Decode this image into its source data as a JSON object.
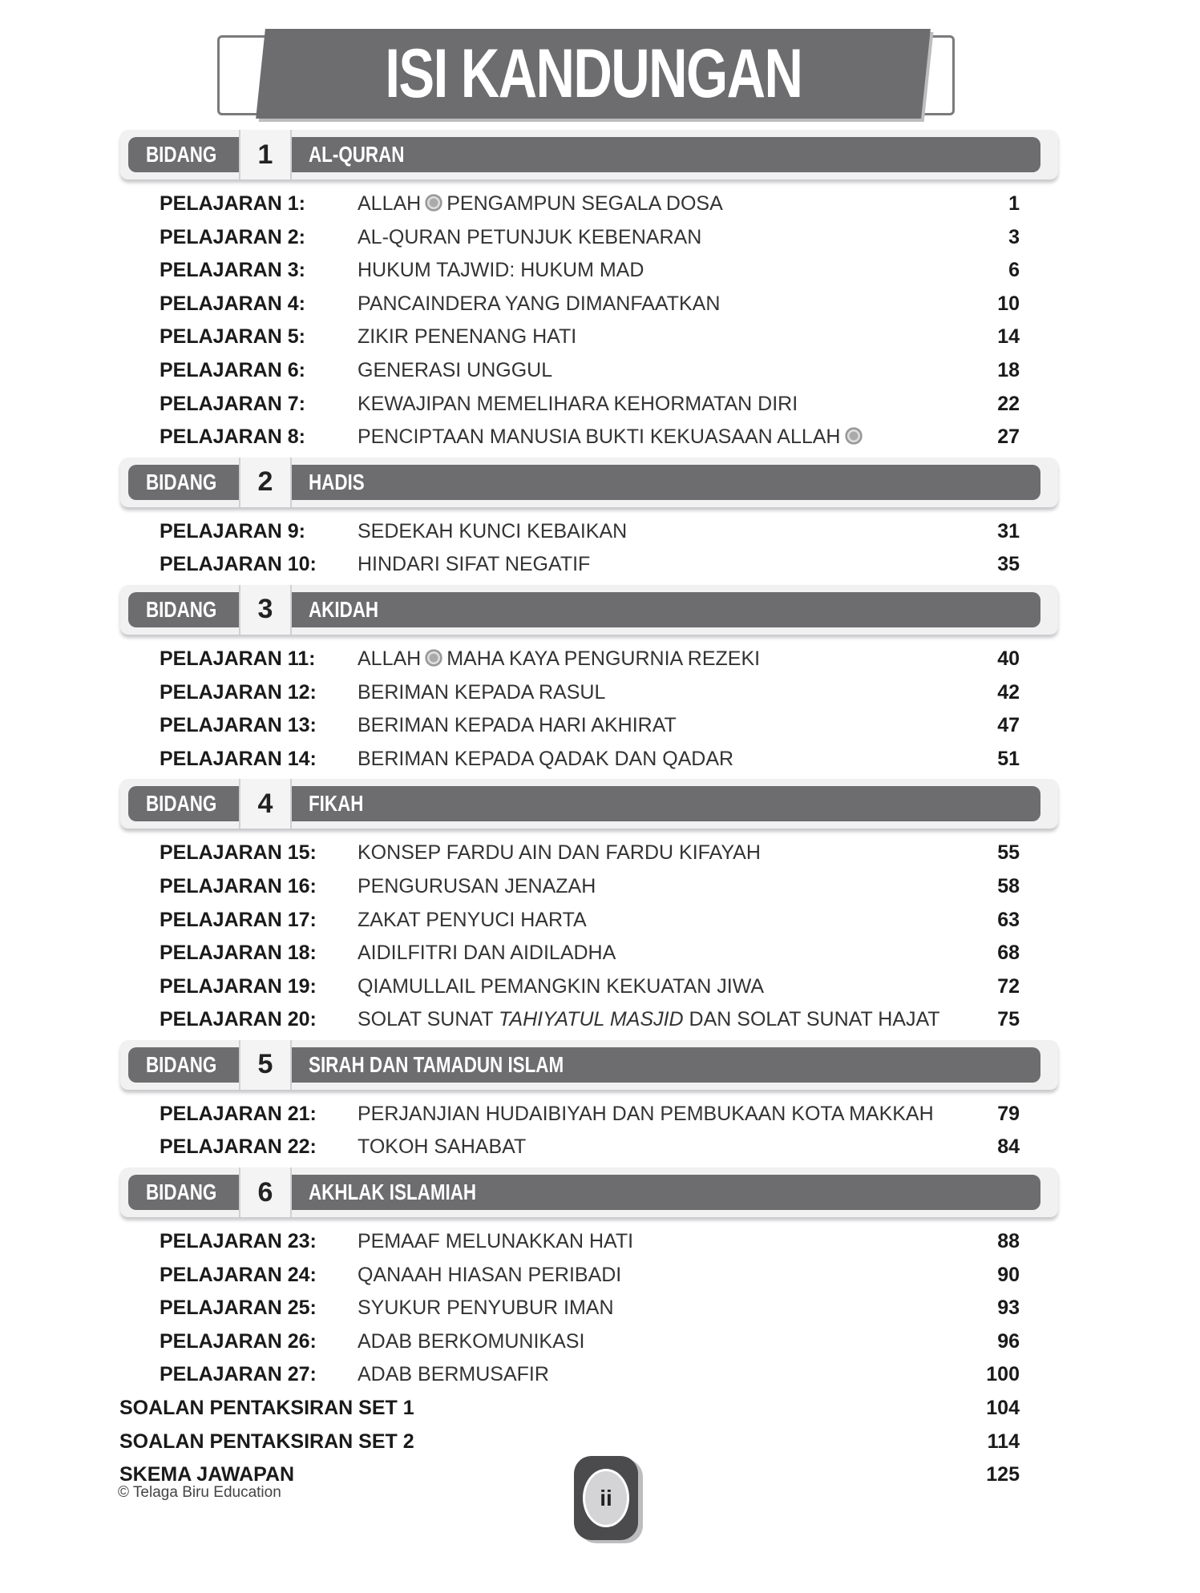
{
  "title": "ISI KANDUNGAN",
  "bidang_label": "BIDANG",
  "sections": [
    {
      "number": "1",
      "title": "AL-QURAN",
      "lessons": [
        {
          "label": "PELAJARAN 1:",
          "segments": [
            {
              "text": "ALLAH"
            },
            {
              "icon": "jalla-jalaluh-icon"
            },
            {
              "text": "PENGAMPUN SEGALA DOSA"
            }
          ],
          "page": "1"
        },
        {
          "label": "PELAJARAN 2:",
          "segments": [
            {
              "text": "AL-QURAN PETUNJUK KEBENARAN"
            }
          ],
          "page": "3"
        },
        {
          "label": "PELAJARAN 3:",
          "segments": [
            {
              "text": "HUKUM TAJWID: HUKUM MAD"
            }
          ],
          "page": "6"
        },
        {
          "label": "PELAJARAN 4:",
          "segments": [
            {
              "text": "PANCAINDERA YANG DIMANFAATKAN"
            }
          ],
          "page": "10"
        },
        {
          "label": "PELAJARAN 5:",
          "segments": [
            {
              "text": "ZIKIR PENENANG HATI"
            }
          ],
          "page": "14"
        },
        {
          "label": "PELAJARAN 6:",
          "segments": [
            {
              "text": "GENERASI UNGGUL"
            }
          ],
          "page": "18"
        },
        {
          "label": "PELAJARAN 7:",
          "segments": [
            {
              "text": "KEWAJIPAN MEMELIHARA KEHORMATAN DIRI"
            }
          ],
          "page": "22"
        },
        {
          "label": "PELAJARAN 8:",
          "segments": [
            {
              "text": "PENCIPTAAN MANUSIA BUKTI KEKUASAAN ALLAH"
            },
            {
              "icon": "jalla-jalaluh-icon"
            }
          ],
          "page": "27"
        }
      ]
    },
    {
      "number": "2",
      "title": "HADIS",
      "lessons": [
        {
          "label": "PELAJARAN 9:",
          "segments": [
            {
              "text": "SEDEKAH KUNCI KEBAIKAN"
            }
          ],
          "page": "31"
        },
        {
          "label": "PELAJARAN 10:",
          "segments": [
            {
              "text": "HINDARI SIFAT NEGATIF"
            }
          ],
          "page": "35"
        }
      ]
    },
    {
      "number": "3",
      "title": "AKIDAH",
      "lessons": [
        {
          "label": "PELAJARAN 11:",
          "segments": [
            {
              "text": "ALLAH"
            },
            {
              "icon": "jalla-jalaluh-icon"
            },
            {
              "text": "MAHA KAYA PENGURNIA REZEKI"
            }
          ],
          "page": "40"
        },
        {
          "label": "PELAJARAN 12:",
          "segments": [
            {
              "text": "BERIMAN KEPADA RASUL"
            }
          ],
          "page": "42"
        },
        {
          "label": "PELAJARAN 13:",
          "segments": [
            {
              "text": "BERIMAN KEPADA HARI AKHIRAT"
            }
          ],
          "page": "47"
        },
        {
          "label": "PELAJARAN 14:",
          "segments": [
            {
              "text": "BERIMAN KEPADA QADAK DAN QADAR"
            }
          ],
          "page": "51"
        }
      ]
    },
    {
      "number": "4",
      "title": "FIKAH",
      "lessons": [
        {
          "label": "PELAJARAN 15:",
          "segments": [
            {
              "text": "KONSEP FARDU AIN DAN FARDU KIFAYAH"
            }
          ],
          "page": "55"
        },
        {
          "label": "PELAJARAN 16:",
          "segments": [
            {
              "text": "PENGURUSAN JENAZAH"
            }
          ],
          "page": "58"
        },
        {
          "label": "PELAJARAN 17:",
          "segments": [
            {
              "text": "ZAKAT PENYUCI HARTA"
            }
          ],
          "page": "63"
        },
        {
          "label": "PELAJARAN 18:",
          "segments": [
            {
              "text": "AIDILFITRI DAN AIDILADHA"
            }
          ],
          "page": "68"
        },
        {
          "label": "PELAJARAN 19:",
          "segments": [
            {
              "text": "QIAMULLAIL PEMANGKIN KEKUATAN JIWA"
            }
          ],
          "page": "72"
        },
        {
          "label": "PELAJARAN 20:",
          "segments": [
            {
              "text": "SOLAT SUNAT "
            },
            {
              "text": "TAHIYATUL MASJID",
              "italic": true
            },
            {
              "text": " DAN SOLAT SUNAT HAJAT"
            }
          ],
          "page": "75"
        }
      ]
    },
    {
      "number": "5",
      "title": "SIRAH DAN TAMADUN ISLAM",
      "lessons": [
        {
          "label": "PELAJARAN 21:",
          "segments": [
            {
              "text": "PERJANJIAN HUDAIBIYAH DAN PEMBUKAAN KOTA MAKKAH"
            }
          ],
          "page": "79"
        },
        {
          "label": "PELAJARAN 22:",
          "segments": [
            {
              "text": "TOKOH SAHABAT"
            }
          ],
          "page": "84"
        }
      ]
    },
    {
      "number": "6",
      "title": "AKHLAK ISLAMIAH",
      "lessons": [
        {
          "label": "PELAJARAN 23:",
          "segments": [
            {
              "text": "PEMAAF MELUNAKKAN HATI"
            }
          ],
          "page": "88"
        },
        {
          "label": "PELAJARAN 24:",
          "segments": [
            {
              "text": "QANAAH HIASAN PERIBADI"
            }
          ],
          "page": "90"
        },
        {
          "label": "PELAJARAN 25:",
          "segments": [
            {
              "text": "SYUKUR PENYUBUR IMAN"
            }
          ],
          "page": "93"
        },
        {
          "label": "PELAJARAN 26:",
          "segments": [
            {
              "text": "ADAB BERKOMUNIKASI"
            }
          ],
          "page": "96"
        },
        {
          "label": "PELAJARAN 27:",
          "segments": [
            {
              "text": "ADAB BERMUSAFIR"
            }
          ],
          "page": "100"
        }
      ]
    }
  ],
  "extras": [
    {
      "label": "SOALAN PENTAKSIRAN SET 1",
      "page": "104"
    },
    {
      "label": "SOALAN PENTAKSIRAN SET 2",
      "page": "114"
    },
    {
      "label": "SKEMA JAWAPAN",
      "page": "125"
    }
  ],
  "footer": {
    "copyright": "© Telaga Biru Education",
    "page_number": "ii"
  }
}
